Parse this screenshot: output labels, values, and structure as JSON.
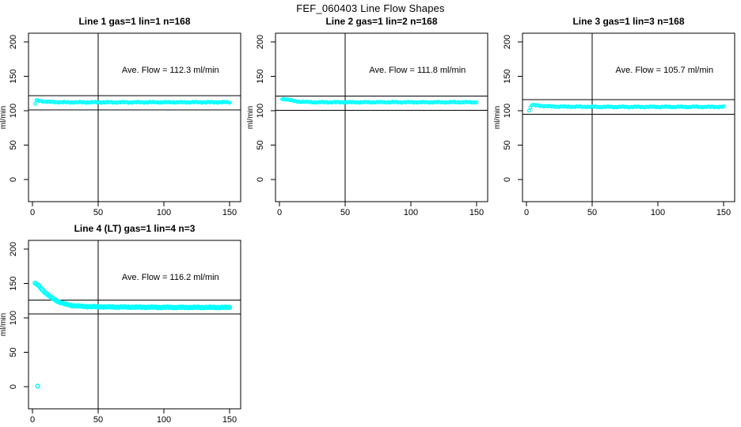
{
  "page": {
    "title": "FEF_060403  Line Flow Shapes"
  },
  "colors": {
    "marker": "#00FFFF",
    "axis": "#000000",
    "background": "#FFFFFF",
    "text": "#000000"
  },
  "chart_data": [
    {
      "type": "scatter",
      "title": "Line 1 gas=1 lin=1 n=168",
      "annotation": "Ave. Flow =  112.3  ml/min",
      "ave_flow": 112.3,
      "n": 168,
      "xlabel": "",
      "ylabel": "ml/min",
      "xlim": [
        -3,
        158
      ],
      "ylim": [
        -32,
        213
      ],
      "xticks": [
        "0",
        "50",
        "100",
        "150"
      ],
      "yticks": [
        "0",
        "50",
        "100",
        "150",
        "200"
      ],
      "vline_x": 50,
      "ref_lines": [
        122,
        101
      ],
      "annotation_pos": [
        105,
        155
      ],
      "x_start": 2,
      "x_end": 150,
      "x_step": 1,
      "noise": 0.9,
      "marker_r": 1.8,
      "marker_stroke": 1.2,
      "profile": [
        [
          2,
          110.0
        ],
        [
          3,
          114.8
        ],
        [
          6,
          114.2
        ],
        [
          12,
          112.8
        ],
        [
          25,
          112.2
        ],
        [
          150,
          112.3
        ]
      ],
      "outliers": []
    },
    {
      "type": "scatter",
      "title": "Line 2 gas=1 lin=2 n=168",
      "annotation": "Ave. Flow =  111.8  ml/min",
      "ave_flow": 111.8,
      "n": 168,
      "xlabel": "",
      "ylabel": "ml/min",
      "xlim": [
        -3,
        158
      ],
      "ylim": [
        -32,
        213
      ],
      "xticks": [
        "0",
        "50",
        "100",
        "150"
      ],
      "yticks": [
        "0",
        "50",
        "100",
        "150",
        "200"
      ],
      "vline_x": 50,
      "ref_lines": [
        121.5,
        100.5
      ],
      "annotation_pos": [
        105,
        155
      ],
      "x_start": 2,
      "x_end": 150,
      "x_step": 1,
      "noise": 0.8,
      "marker_r": 1.8,
      "marker_stroke": 1.2,
      "profile": [
        [
          2,
          117.2
        ],
        [
          6,
          116.5
        ],
        [
          12,
          113.5
        ],
        [
          25,
          112.3
        ],
        [
          150,
          112.3
        ]
      ],
      "outliers": []
    },
    {
      "type": "scatter",
      "title": "Line 3 gas=1 lin=3 n=168",
      "annotation": "Ave. Flow =  105.7  ml/min",
      "ave_flow": 105.7,
      "n": 168,
      "xlabel": "",
      "ylabel": "ml/min",
      "xlim": [
        -3,
        158
      ],
      "ylim": [
        -32,
        213
      ],
      "xticks": [
        "0",
        "50",
        "100",
        "150"
      ],
      "yticks": [
        "0",
        "50",
        "100",
        "150",
        "200"
      ],
      "vline_x": 50,
      "ref_lines": [
        116,
        95
      ],
      "annotation_pos": [
        105,
        155
      ],
      "x_start": 2,
      "x_end": 150,
      "x_step": 1,
      "noise": 0.9,
      "marker_r": 1.8,
      "marker_stroke": 1.2,
      "profile": [
        [
          2,
          100.5
        ],
        [
          4,
          108.5
        ],
        [
          8,
          107.5
        ],
        [
          20,
          106.0
        ],
        [
          60,
          105.5
        ],
        [
          150,
          105.6
        ]
      ],
      "outliers": []
    },
    {
      "type": "scatter",
      "title": "Line 4 (LT) gas=1 lin=4 n=3",
      "annotation": "Ave. Flow =  116.2  ml/min",
      "ave_flow": 116.2,
      "n": 3,
      "xlabel": "",
      "ylabel": "ml/min",
      "xlim": [
        -3,
        158
      ],
      "ylim": [
        -32,
        213
      ],
      "xticks": [
        "0",
        "50",
        "100",
        "150"
      ],
      "yticks": [
        "0",
        "50",
        "100",
        "150",
        "200"
      ],
      "vline_x": 50,
      "ref_lines": [
        126,
        105.5
      ],
      "annotation_pos": [
        105,
        155
      ],
      "x_start": 2,
      "x_end": 150,
      "x_step": 1,
      "noise": 0.7,
      "marker_r": 2.4,
      "marker_stroke": 1.5,
      "profile": [
        [
          2,
          150
        ],
        [
          4,
          148
        ],
        [
          8,
          140
        ],
        [
          12,
          133
        ],
        [
          16,
          127.5
        ],
        [
          20,
          123.5
        ],
        [
          25,
          120
        ],
        [
          30,
          118
        ],
        [
          40,
          116.5
        ],
        [
          60,
          115.8
        ],
        [
          100,
          115.3
        ],
        [
          150,
          115.2
        ]
      ],
      "outliers": [
        [
          4,
          0.8
        ]
      ]
    }
  ]
}
